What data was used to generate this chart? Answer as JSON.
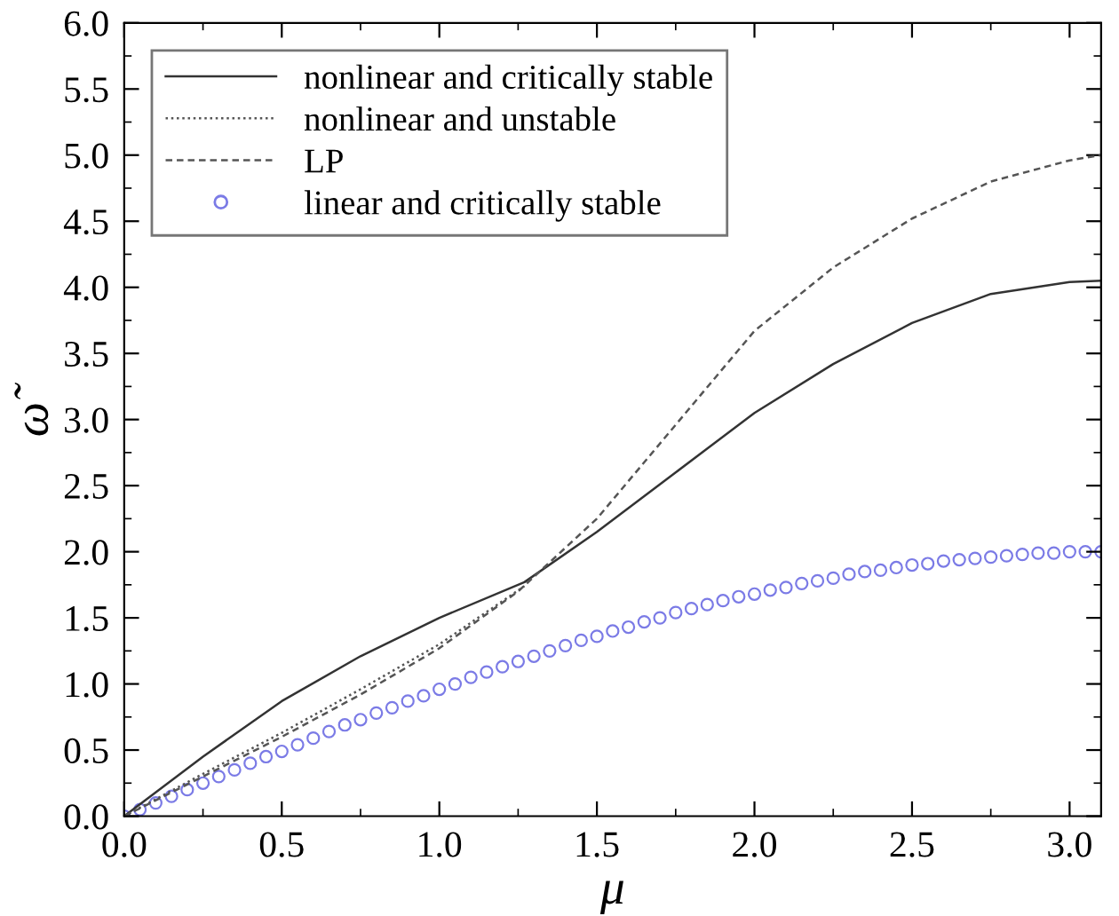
{
  "chart_data": {
    "type": "line",
    "xlabel": "μ",
    "ylabel": "ω̃",
    "xlim": [
      0,
      3.1
    ],
    "ylim": [
      0,
      6.0
    ],
    "xticks": [
      {
        "value": 0,
        "label": "0.0"
      },
      0.5,
      {
        "value": 1,
        "label": "1.0"
      },
      1.5,
      {
        "value": 2,
        "label": "2.0"
      },
      2.5,
      {
        "value": 3,
        "label": "3.0"
      }
    ],
    "yticks": [
      {
        "value": 0,
        "label": "0.0"
      },
      0.5,
      {
        "value": 1,
        "label": "1.0"
      },
      1.5,
      {
        "value": 2,
        "label": "2.0"
      },
      2.5,
      {
        "value": 3,
        "label": "3.0"
      },
      3.5,
      {
        "value": 4,
        "label": "4.0"
      },
      4.5,
      {
        "value": 5,
        "label": "5.0"
      },
      5.5,
      {
        "value": 6,
        "label": "6.0"
      }
    ],
    "grid": false,
    "legend": "top left",
    "tick_labels": [
      "x",
      "y"
    ],
    "series": [
      {
        "name": "nonlinear and critically stable",
        "line_style": "solid",
        "color": "#333333",
        "x": [
          0,
          0.25,
          0.5,
          0.75,
          1.0,
          1.27,
          1.5,
          1.75,
          2.0,
          2.25,
          2.5,
          2.75,
          3.0,
          3.1
        ],
        "values": [
          0,
          0.45,
          0.87,
          1.21,
          1.5,
          1.77,
          2.15,
          2.6,
          3.05,
          3.42,
          3.73,
          3.95,
          4.04,
          4.05
        ]
      },
      {
        "name": "nonlinear and unstable",
        "line_style": "dotted",
        "color": "#555555",
        "x": [
          0,
          0.25,
          0.5,
          0.75,
          1.0,
          1.27
        ],
        "values": [
          0,
          0.32,
          0.63,
          0.96,
          1.3,
          1.74
        ]
      },
      {
        "name": "LP",
        "line_style": "dashed",
        "color": "#555555",
        "x": [
          0,
          0.25,
          0.5,
          0.75,
          1.0,
          1.25,
          1.5,
          1.75,
          2.0,
          2.25,
          2.5,
          2.75,
          3.0,
          3.1
        ],
        "values": [
          0,
          0.3,
          0.6,
          0.92,
          1.27,
          1.7,
          2.25,
          2.96,
          3.67,
          4.15,
          4.52,
          4.8,
          4.96,
          5.0
        ]
      },
      {
        "name": "linear and critically stable",
        "type": "scatter",
        "marker": "circle",
        "color": "#7b7be6",
        "x": [
          0,
          0.05,
          0.1,
          0.15,
          0.2,
          0.25,
          0.3,
          0.35,
          0.4,
          0.45,
          0.5,
          0.55,
          0.6,
          0.65,
          0.7,
          0.75,
          0.8,
          0.85,
          0.9,
          0.95,
          1.0,
          1.05,
          1.1,
          1.15,
          1.2,
          1.25,
          1.3,
          1.35,
          1.4,
          1.45,
          1.5,
          1.55,
          1.6,
          1.65,
          1.7,
          1.75,
          1.8,
          1.85,
          1.9,
          1.95,
          2.0,
          2.05,
          2.1,
          2.15,
          2.2,
          2.25,
          2.3,
          2.35,
          2.4,
          2.45,
          2.5,
          2.55,
          2.6,
          2.65,
          2.7,
          2.75,
          2.8,
          2.85,
          2.9,
          2.95,
          3.0,
          3.05,
          3.1
        ],
        "values": [
          0,
          0.05,
          0.1,
          0.15,
          0.2,
          0.25,
          0.3,
          0.35,
          0.4,
          0.45,
          0.49,
          0.54,
          0.59,
          0.64,
          0.69,
          0.73,
          0.78,
          0.82,
          0.87,
          0.91,
          0.96,
          1.0,
          1.05,
          1.09,
          1.13,
          1.17,
          1.21,
          1.25,
          1.29,
          1.33,
          1.36,
          1.4,
          1.43,
          1.47,
          1.5,
          1.54,
          1.57,
          1.6,
          1.63,
          1.66,
          1.68,
          1.71,
          1.73,
          1.76,
          1.78,
          1.8,
          1.83,
          1.85,
          1.86,
          1.88,
          1.9,
          1.91,
          1.93,
          1.94,
          1.95,
          1.96,
          1.97,
          1.98,
          1.99,
          1.99,
          2.0,
          2.0,
          2.0
        ]
      }
    ]
  }
}
